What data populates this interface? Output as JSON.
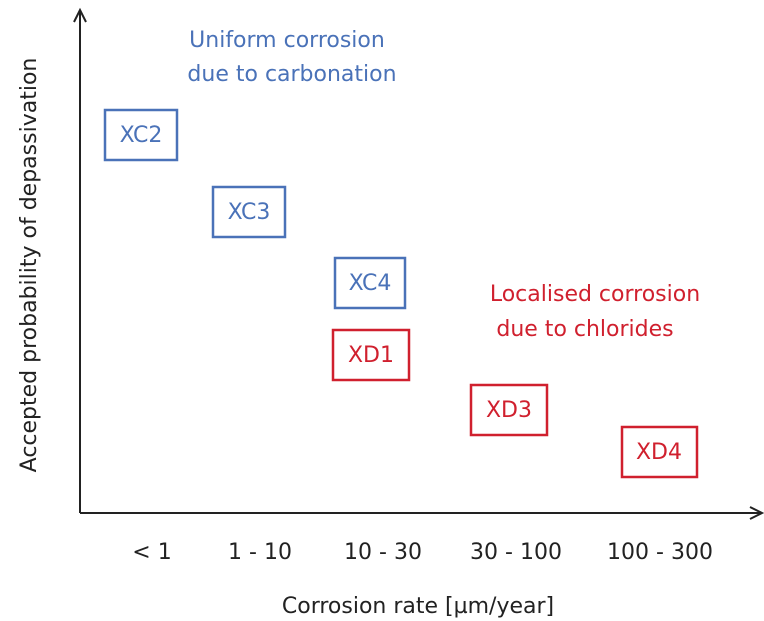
{
  "axes": {
    "y_label": "Accepted probability of depassivation",
    "x_label": "Corrosion rate [µm/year]",
    "x_categories": [
      "< 1",
      "1 - 10",
      "10 - 30",
      "30 - 100",
      "100 - 300"
    ]
  },
  "groups": [
    {
      "label_lines": [
        "Uniform corrosion",
        "due to carbonation"
      ],
      "boxes": [
        "XC2",
        "XC3",
        "XC4"
      ]
    },
    {
      "label_lines": [
        "Localised corrosion",
        "due to chlorides"
      ],
      "boxes": [
        "XD1",
        "XD3",
        "XD4"
      ]
    }
  ]
}
